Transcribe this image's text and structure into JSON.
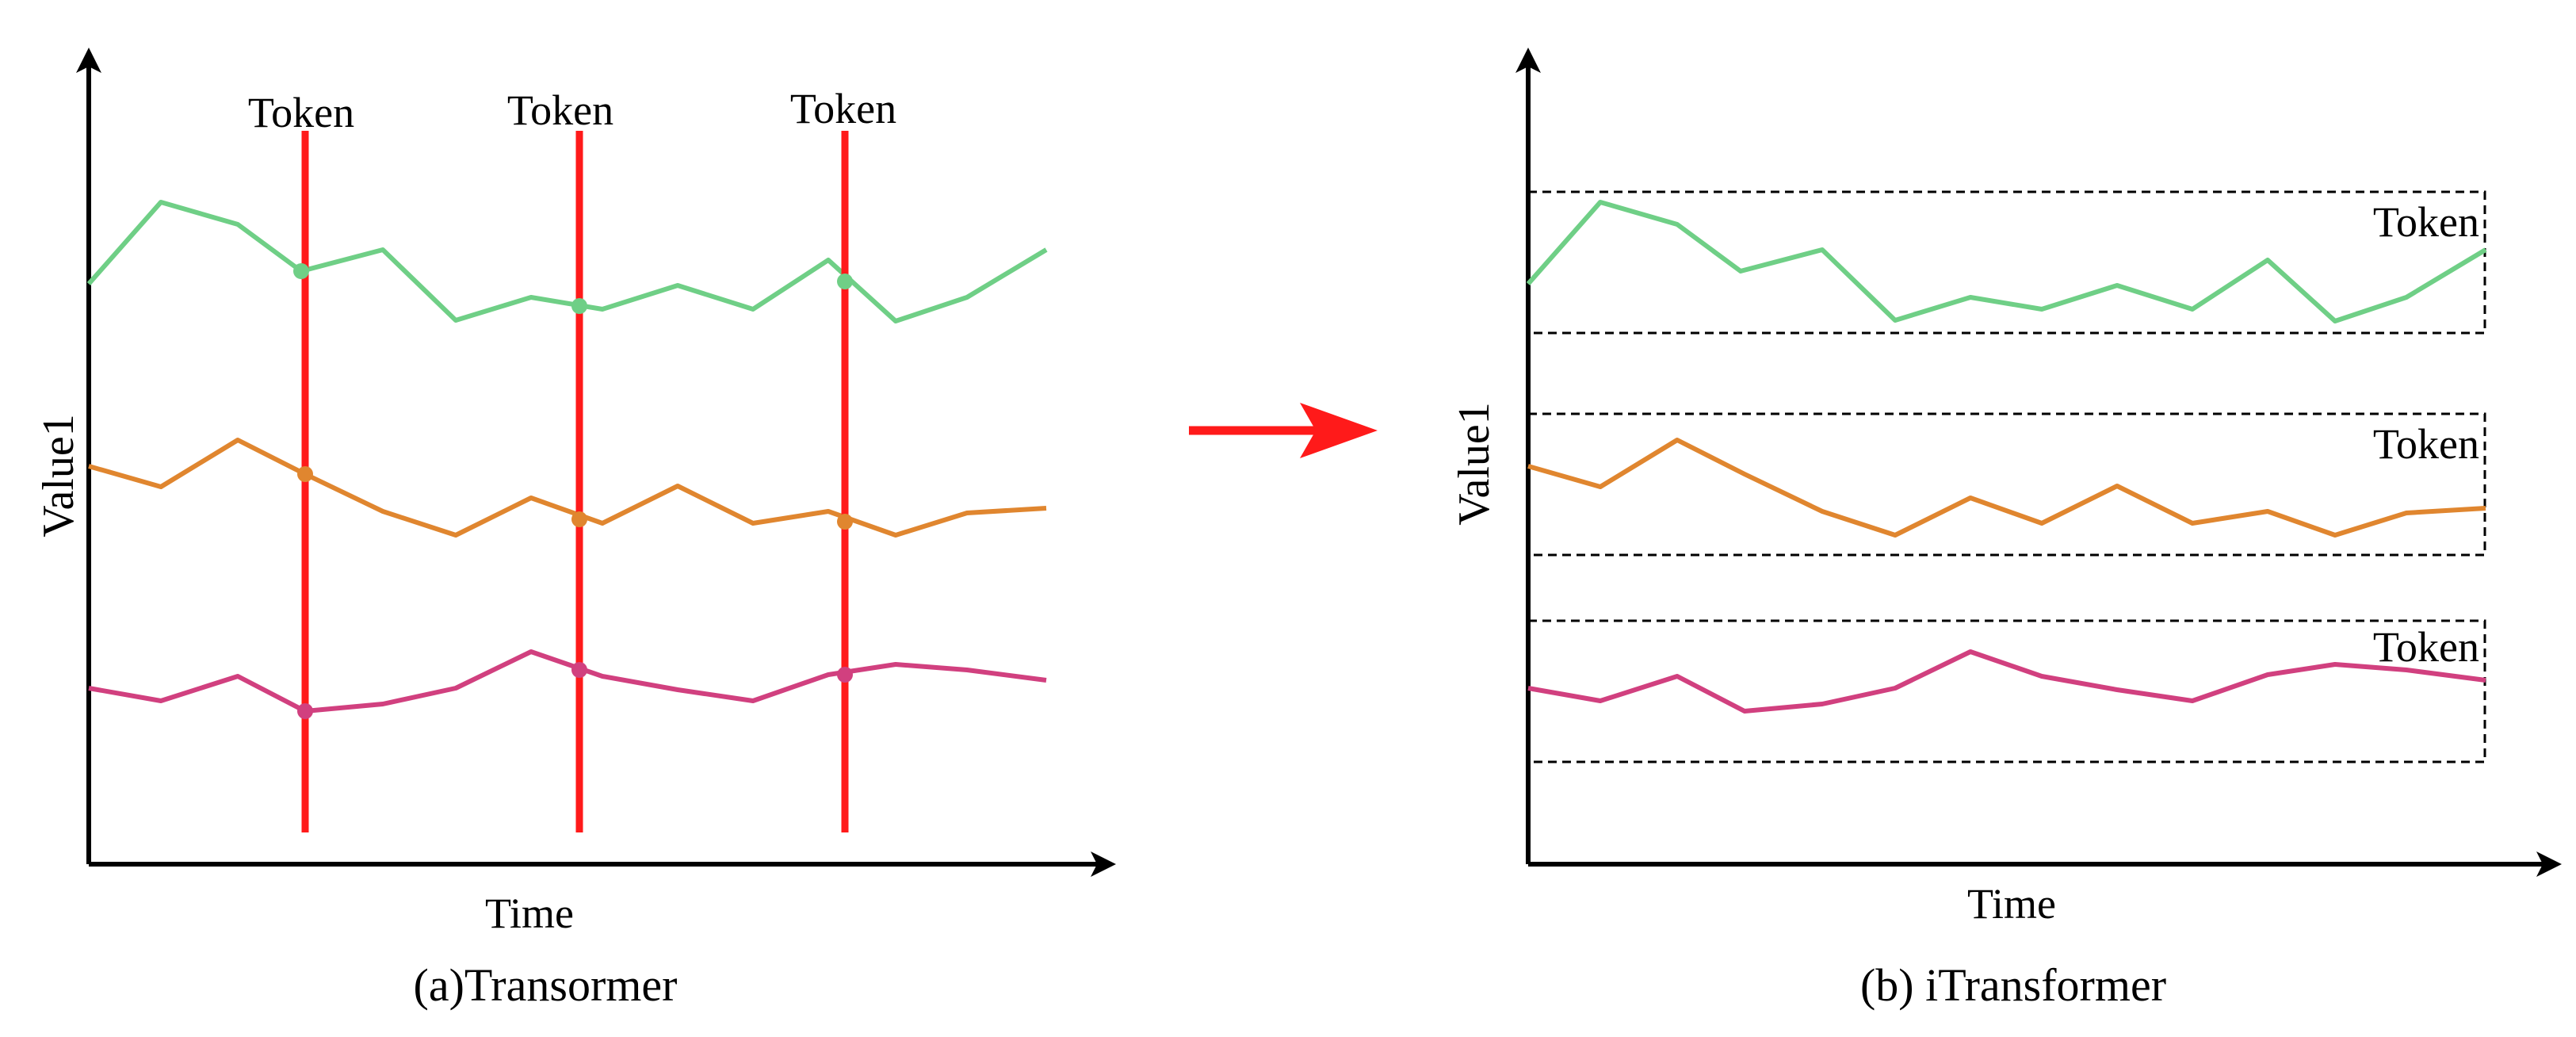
{
  "left_panel": {
    "ylabel": "Value1",
    "xlabel": "Time",
    "caption": "(a)Transormer",
    "token_labels": [
      "Token",
      "Token",
      "Token"
    ]
  },
  "right_panel": {
    "ylabel": "Value1",
    "xlabel": "Time",
    "caption": "(b) iTransformer",
    "token_labels": [
      "Token",
      "Token",
      "Token"
    ]
  },
  "colors": {
    "green": "#6fcf86",
    "orange": "#e0862f",
    "magenta": "#d1407f",
    "red": "#ff1a1a",
    "axis": "#000000"
  }
}
